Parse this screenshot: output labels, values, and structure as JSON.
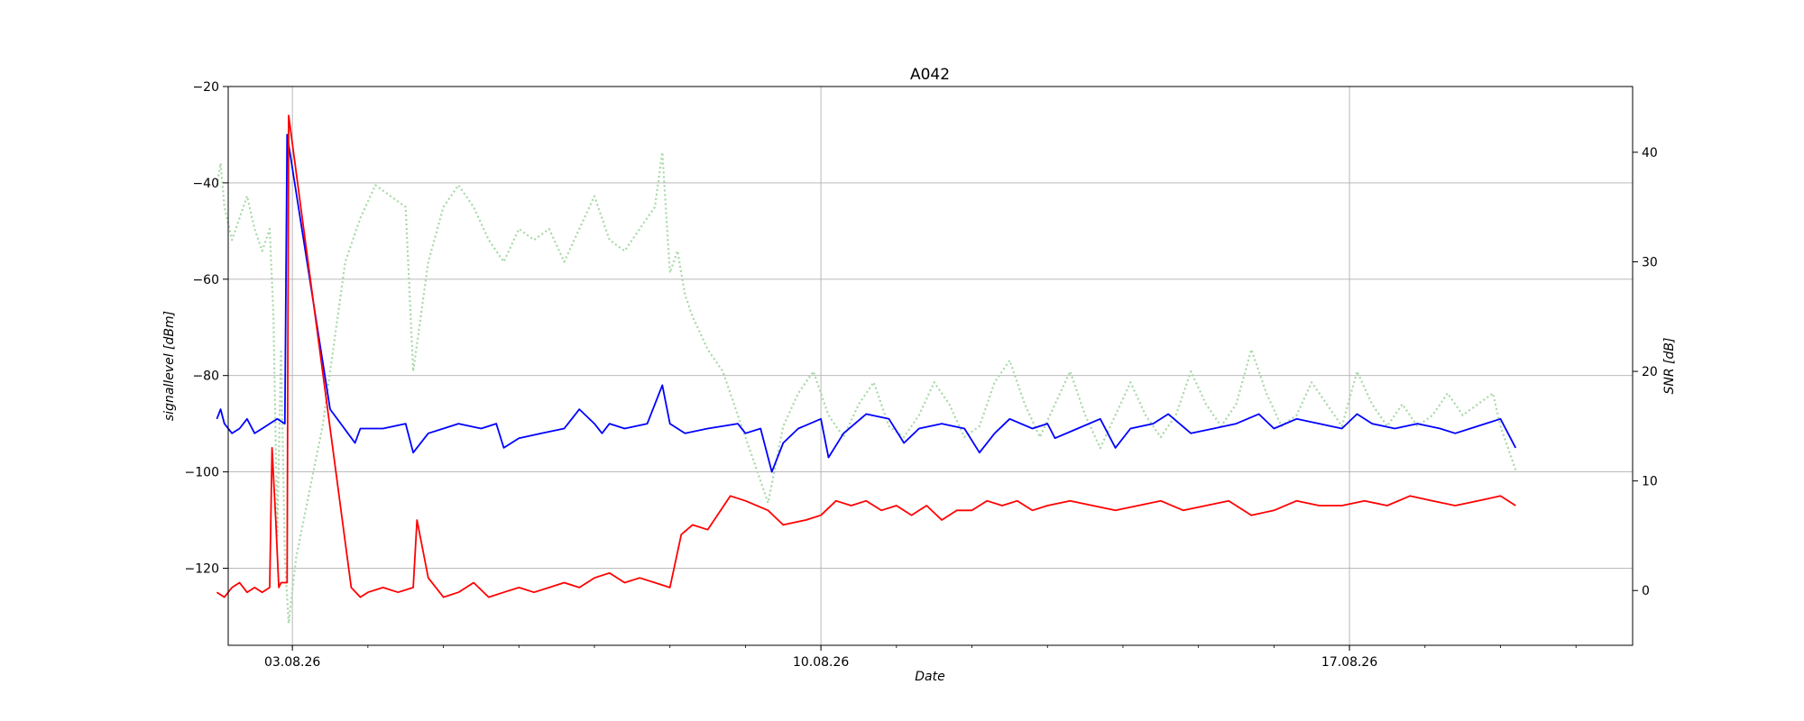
{
  "chart_data": {
    "type": "line",
    "title": "A042",
    "xlabel": "Date",
    "ylabel_left": "signallevel [dBm]",
    "ylabel_right": "SNR [dB]",
    "x_unit": "days in August 2026",
    "xlim": [
      1.15,
      19.75
    ],
    "ylim_left": [
      -136,
      -20
    ],
    "ylim_right": [
      -5,
      46
    ],
    "x_ticks": [
      {
        "x": 2.0,
        "label": "03.08.26"
      },
      {
        "x": 9.0,
        "label": "10.08.26"
      },
      {
        "x": 16.0,
        "label": "17.08.26"
      }
    ],
    "y_ticks_left": [
      -120,
      -100,
      -80,
      -60,
      -40,
      -20
    ],
    "y_ticks_right": [
      0,
      10,
      20,
      30,
      40
    ],
    "grid": true,
    "series": [
      {
        "axis": "left",
        "color": "#0000ff",
        "style": "solid",
        "points": [
          [
            1.0,
            -89
          ],
          [
            1.05,
            -87
          ],
          [
            1.1,
            -90
          ],
          [
            1.2,
            -92
          ],
          [
            1.3,
            -91
          ],
          [
            1.4,
            -89
          ],
          [
            1.5,
            -92
          ],
          [
            1.6,
            -91
          ],
          [
            1.7,
            -90
          ],
          [
            1.8,
            -89
          ],
          [
            1.9,
            -90
          ],
          [
            1.93,
            -30
          ],
          [
            2.5,
            -87
          ],
          [
            2.83,
            -94
          ],
          [
            2.9,
            -91
          ],
          [
            3.2,
            -91
          ],
          [
            3.5,
            -90
          ],
          [
            3.6,
            -96
          ],
          [
            3.8,
            -92
          ],
          [
            4.0,
            -91
          ],
          [
            4.2,
            -90
          ],
          [
            4.5,
            -91
          ],
          [
            4.7,
            -90
          ],
          [
            4.8,
            -95
          ],
          [
            5.0,
            -93
          ],
          [
            5.3,
            -92
          ],
          [
            5.6,
            -91
          ],
          [
            5.8,
            -87
          ],
          [
            6.0,
            -90
          ],
          [
            6.1,
            -92
          ],
          [
            6.2,
            -90
          ],
          [
            6.4,
            -91
          ],
          [
            6.7,
            -90
          ],
          [
            6.9,
            -82
          ],
          [
            7.0,
            -90
          ],
          [
            7.2,
            -92
          ],
          [
            7.5,
            -91
          ],
          [
            7.9,
            -90
          ],
          [
            8.0,
            -92
          ],
          [
            8.2,
            -91
          ],
          [
            8.35,
            -100
          ],
          [
            8.5,
            -94
          ],
          [
            8.7,
            -91
          ],
          [
            9.0,
            -89
          ],
          [
            9.1,
            -97
          ],
          [
            9.3,
            -92
          ],
          [
            9.6,
            -88
          ],
          [
            9.9,
            -89
          ],
          [
            10.1,
            -94
          ],
          [
            10.3,
            -91
          ],
          [
            10.6,
            -90
          ],
          [
            10.9,
            -91
          ],
          [
            11.1,
            -96
          ],
          [
            11.3,
            -92
          ],
          [
            11.5,
            -89
          ],
          [
            11.8,
            -91
          ],
          [
            12.0,
            -90
          ],
          [
            12.1,
            -93
          ],
          [
            12.4,
            -91
          ],
          [
            12.7,
            -89
          ],
          [
            12.9,
            -95
          ],
          [
            13.1,
            -91
          ],
          [
            13.4,
            -90
          ],
          [
            13.6,
            -88
          ],
          [
            13.9,
            -92
          ],
          [
            14.2,
            -91
          ],
          [
            14.5,
            -90
          ],
          [
            14.8,
            -88
          ],
          [
            15.0,
            -91
          ],
          [
            15.3,
            -89
          ],
          [
            15.6,
            -90
          ],
          [
            15.9,
            -91
          ],
          [
            16.1,
            -88
          ],
          [
            16.3,
            -90
          ],
          [
            16.6,
            -91
          ],
          [
            16.9,
            -90
          ],
          [
            17.2,
            -91
          ],
          [
            17.4,
            -92
          ],
          [
            17.6,
            -91
          ],
          [
            17.8,
            -90
          ],
          [
            18.0,
            -89
          ],
          [
            18.2,
            -95
          ]
        ]
      },
      {
        "axis": "left",
        "color": "#ff0000",
        "style": "solid",
        "points": [
          [
            1.0,
            -125
          ],
          [
            1.1,
            -126
          ],
          [
            1.2,
            -124
          ],
          [
            1.3,
            -123
          ],
          [
            1.4,
            -125
          ],
          [
            1.5,
            -124
          ],
          [
            1.6,
            -125
          ],
          [
            1.7,
            -124
          ],
          [
            1.73,
            -95
          ],
          [
            1.78,
            -110
          ],
          [
            1.82,
            -124
          ],
          [
            1.85,
            -123
          ],
          [
            1.93,
            -123
          ],
          [
            1.95,
            -26
          ],
          [
            2.78,
            -124
          ],
          [
            2.9,
            -126
          ],
          [
            3.0,
            -125
          ],
          [
            3.2,
            -124
          ],
          [
            3.4,
            -125
          ],
          [
            3.6,
            -124
          ],
          [
            3.65,
            -110
          ],
          [
            3.8,
            -122
          ],
          [
            4.0,
            -126
          ],
          [
            4.2,
            -125
          ],
          [
            4.4,
            -123
          ],
          [
            4.6,
            -126
          ],
          [
            4.8,
            -125
          ],
          [
            5.0,
            -124
          ],
          [
            5.2,
            -125
          ],
          [
            5.4,
            -124
          ],
          [
            5.6,
            -123
          ],
          [
            5.8,
            -124
          ],
          [
            6.0,
            -122
          ],
          [
            6.2,
            -121
          ],
          [
            6.4,
            -123
          ],
          [
            6.6,
            -122
          ],
          [
            6.8,
            -123
          ],
          [
            7.0,
            -124
          ],
          [
            7.15,
            -113
          ],
          [
            7.3,
            -111
          ],
          [
            7.5,
            -112
          ],
          [
            7.8,
            -105
          ],
          [
            8.0,
            -106
          ],
          [
            8.3,
            -108
          ],
          [
            8.5,
            -111
          ],
          [
            8.8,
            -110
          ],
          [
            9.0,
            -109
          ],
          [
            9.2,
            -106
          ],
          [
            9.4,
            -107
          ],
          [
            9.6,
            -106
          ],
          [
            9.8,
            -108
          ],
          [
            10.0,
            -107
          ],
          [
            10.2,
            -109
          ],
          [
            10.4,
            -107
          ],
          [
            10.6,
            -110
          ],
          [
            10.8,
            -108
          ],
          [
            11.0,
            -108
          ],
          [
            11.2,
            -106
          ],
          [
            11.4,
            -107
          ],
          [
            11.6,
            -106
          ],
          [
            11.8,
            -108
          ],
          [
            12.0,
            -107
          ],
          [
            12.3,
            -106
          ],
          [
            12.6,
            -107
          ],
          [
            12.9,
            -108
          ],
          [
            13.2,
            -107
          ],
          [
            13.5,
            -106
          ],
          [
            13.8,
            -108
          ],
          [
            14.1,
            -107
          ],
          [
            14.4,
            -106
          ],
          [
            14.7,
            -109
          ],
          [
            15.0,
            -108
          ],
          [
            15.3,
            -106
          ],
          [
            15.6,
            -107
          ],
          [
            15.9,
            -107
          ],
          [
            16.2,
            -106
          ],
          [
            16.5,
            -107
          ],
          [
            16.8,
            -105
          ],
          [
            17.1,
            -106
          ],
          [
            17.4,
            -107
          ],
          [
            17.7,
            -106
          ],
          [
            18.0,
            -105
          ],
          [
            18.2,
            -107
          ]
        ]
      },
      {
        "axis": "right",
        "color": "#a6d8a6",
        "style": "dotted",
        "points": [
          [
            1.0,
            37
          ],
          [
            1.05,
            39
          ],
          [
            1.1,
            35
          ],
          [
            1.2,
            32
          ],
          [
            1.3,
            34
          ],
          [
            1.4,
            36
          ],
          [
            1.5,
            33
          ],
          [
            1.6,
            31
          ],
          [
            1.7,
            33
          ],
          [
            1.75,
            25
          ],
          [
            1.8,
            5
          ],
          [
            1.85,
            22
          ],
          [
            1.9,
            3
          ],
          [
            1.95,
            -3
          ],
          [
            2.05,
            3
          ],
          [
            2.4,
            15
          ],
          [
            2.7,
            30
          ],
          [
            2.9,
            34
          ],
          [
            3.1,
            37
          ],
          [
            3.3,
            36
          ],
          [
            3.5,
            35
          ],
          [
            3.6,
            20
          ],
          [
            3.8,
            30
          ],
          [
            4.0,
            35
          ],
          [
            4.2,
            37
          ],
          [
            4.4,
            35
          ],
          [
            4.6,
            32
          ],
          [
            4.8,
            30
          ],
          [
            5.0,
            33
          ],
          [
            5.2,
            32
          ],
          [
            5.4,
            33
          ],
          [
            5.6,
            30
          ],
          [
            5.8,
            33
          ],
          [
            6.0,
            36
          ],
          [
            6.2,
            32
          ],
          [
            6.4,
            31
          ],
          [
            6.6,
            33
          ],
          [
            6.8,
            35
          ],
          [
            6.9,
            40
          ],
          [
            7.0,
            29
          ],
          [
            7.1,
            31
          ],
          [
            7.2,
            27
          ],
          [
            7.3,
            25
          ],
          [
            7.5,
            22
          ],
          [
            7.7,
            20
          ],
          [
            7.9,
            16
          ],
          [
            8.1,
            12
          ],
          [
            8.3,
            8
          ],
          [
            8.5,
            15
          ],
          [
            8.7,
            18
          ],
          [
            8.9,
            20
          ],
          [
            9.1,
            16
          ],
          [
            9.3,
            14
          ],
          [
            9.5,
            17
          ],
          [
            9.7,
            19
          ],
          [
            9.9,
            15
          ],
          [
            10.1,
            14
          ],
          [
            10.3,
            16
          ],
          [
            10.5,
            19
          ],
          [
            10.7,
            17
          ],
          [
            10.9,
            14
          ],
          [
            11.1,
            15
          ],
          [
            11.3,
            19
          ],
          [
            11.5,
            21
          ],
          [
            11.7,
            17
          ],
          [
            11.9,
            14
          ],
          [
            12.1,
            17
          ],
          [
            12.3,
            20
          ],
          [
            12.5,
            16
          ],
          [
            12.7,
            13
          ],
          [
            12.9,
            16
          ],
          [
            13.1,
            19
          ],
          [
            13.3,
            16
          ],
          [
            13.5,
            14
          ],
          [
            13.7,
            16
          ],
          [
            13.9,
            20
          ],
          [
            14.1,
            17
          ],
          [
            14.3,
            15
          ],
          [
            14.5,
            17
          ],
          [
            14.7,
            22
          ],
          [
            14.9,
            18
          ],
          [
            15.1,
            15
          ],
          [
            15.3,
            16
          ],
          [
            15.5,
            19
          ],
          [
            15.7,
            17
          ],
          [
            15.9,
            15
          ],
          [
            16.1,
            20
          ],
          [
            16.3,
            17
          ],
          [
            16.5,
            15
          ],
          [
            16.7,
            17
          ],
          [
            16.9,
            15
          ],
          [
            17.1,
            16
          ],
          [
            17.3,
            18
          ],
          [
            17.5,
            16
          ],
          [
            17.7,
            17
          ],
          [
            17.9,
            18
          ],
          [
            18.0,
            15
          ],
          [
            18.2,
            11
          ]
        ]
      }
    ]
  }
}
